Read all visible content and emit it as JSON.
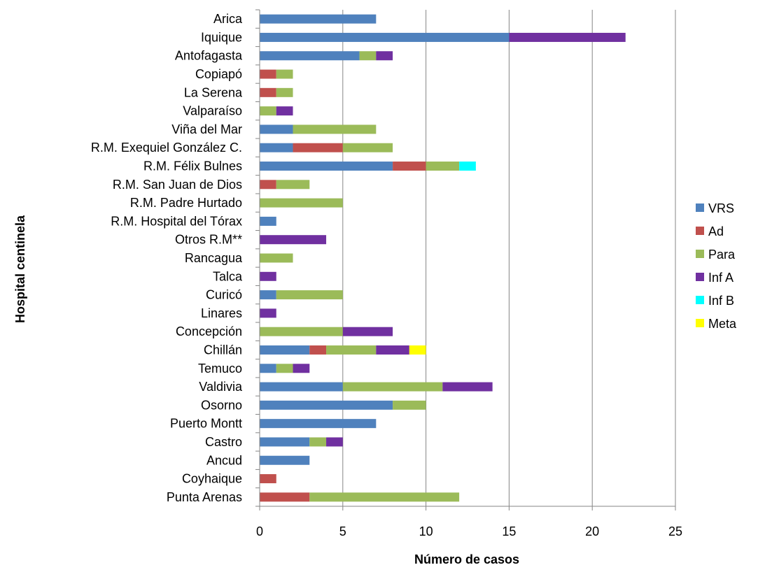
{
  "chart_data": {
    "type": "bar",
    "orientation": "horizontal",
    "stacked": true,
    "title": "",
    "xlabel": "Número de casos",
    "ylabel": "Hospital centinela",
    "xlim": [
      0,
      25
    ],
    "xticks": [
      0,
      5,
      10,
      15,
      20,
      25
    ],
    "grid": "vertical",
    "legend_position": "right",
    "categories": [
      "Arica",
      "Iquique",
      "Antofagasta",
      "Copiapó",
      "La Serena",
      "Valparaíso",
      "Viña del Mar",
      "R.M. Exequiel González C.",
      "R.M. Félix Bulnes",
      "R.M. San Juan de Dios",
      "R.M. Padre Hurtado",
      "R.M. Hospital del Tórax",
      "Otros R.M**",
      "Rancagua",
      "Talca",
      "Curicó",
      "Linares",
      "Concepción",
      "Chillán",
      "Temuco",
      "Valdivia",
      "Osorno",
      "Puerto Montt",
      "Castro",
      "Ancud",
      "Coyhaique",
      "Punta Arenas"
    ],
    "series": [
      {
        "name": "VRS",
        "color": "#4F81BD",
        "values": [
          7,
          15,
          6,
          0,
          0,
          0,
          2,
          2,
          8,
          0,
          0,
          1,
          0,
          0,
          0,
          1,
          0,
          0,
          3,
          1,
          5,
          8,
          7,
          3,
          3,
          0,
          0
        ]
      },
      {
        "name": "Ad",
        "color": "#C0504D",
        "values": [
          0,
          0,
          0,
          1,
          1,
          0,
          0,
          3,
          2,
          1,
          0,
          0,
          0,
          0,
          0,
          0,
          0,
          0,
          1,
          0,
          0,
          0,
          0,
          0,
          0,
          1,
          3
        ]
      },
      {
        "name": "Para",
        "color": "#9BBB59",
        "values": [
          0,
          0,
          1,
          1,
          1,
          1,
          5,
          3,
          2,
          2,
          5,
          0,
          0,
          2,
          0,
          4,
          0,
          5,
          3,
          1,
          6,
          2,
          0,
          1,
          0,
          0,
          9
        ]
      },
      {
        "name": "Inf A",
        "color": "#7030A0",
        "values": [
          0,
          7,
          1,
          0,
          0,
          1,
          0,
          0,
          0,
          0,
          0,
          0,
          4,
          0,
          1,
          0,
          1,
          3,
          2,
          1,
          3,
          0,
          0,
          1,
          0,
          0,
          0
        ]
      },
      {
        "name": "Inf B",
        "color": "#00FFFF",
        "values": [
          0,
          0,
          0,
          0,
          0,
          0,
          0,
          0,
          1,
          0,
          0,
          0,
          0,
          0,
          0,
          0,
          0,
          0,
          0,
          0,
          0,
          0,
          0,
          0,
          0,
          0,
          0
        ]
      },
      {
        "name": "Meta",
        "color": "#FFFF00",
        "values": [
          0,
          0,
          0,
          0,
          0,
          0,
          0,
          0,
          0,
          0,
          0,
          0,
          0,
          0,
          0,
          0,
          0,
          0,
          1,
          0,
          0,
          0,
          0,
          0,
          0,
          0,
          0
        ]
      }
    ]
  }
}
